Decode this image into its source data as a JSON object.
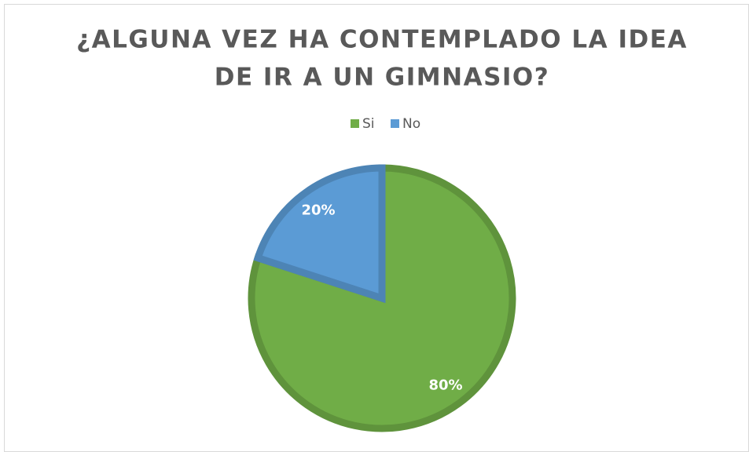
{
  "chart_data": {
    "type": "pie",
    "title_lines": [
      "¿ALGUNA VEZ HA CONTEMPLADO LA IDEA",
      "DE IR A UN GIMNASIO?"
    ],
    "categories": [
      "Si",
      "No"
    ],
    "values": [
      80,
      20
    ],
    "value_labels": [
      "80%",
      "20%"
    ],
    "colors": [
      "#70ad47",
      "#5b9bd5"
    ],
    "legend": "top"
  }
}
